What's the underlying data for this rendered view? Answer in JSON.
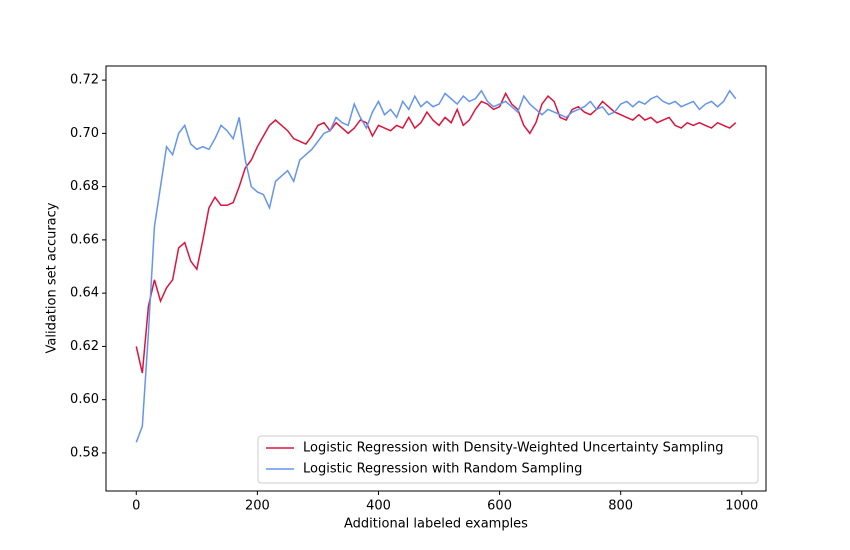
{
  "chart_data": {
    "type": "line",
    "xlabel": "Additional labeled examples",
    "ylabel": "Validation set accuracy",
    "x": [
      0,
      10,
      20,
      30,
      40,
      50,
      60,
      70,
      80,
      90,
      100,
      110,
      120,
      130,
      140,
      150,
      160,
      170,
      180,
      190,
      200,
      210,
      220,
      230,
      240,
      250,
      260,
      270,
      280,
      290,
      300,
      310,
      320,
      330,
      340,
      350,
      360,
      370,
      380,
      390,
      400,
      410,
      420,
      430,
      440,
      450,
      460,
      470,
      480,
      490,
      500,
      510,
      520,
      530,
      540,
      550,
      560,
      570,
      580,
      590,
      600,
      610,
      620,
      630,
      640,
      650,
      660,
      670,
      680,
      690,
      700,
      710,
      720,
      730,
      740,
      750,
      760,
      770,
      780,
      790,
      800,
      810,
      820,
      830,
      840,
      850,
      860,
      870,
      880,
      890,
      900,
      910,
      920,
      930,
      940,
      950,
      960,
      970,
      980,
      990
    ],
    "series": [
      {
        "name": "Logistic Regression with Density-Weighted Uncertainty Sampling",
        "color": "#dc143c",
        "values": [
          0.62,
          0.61,
          0.635,
          0.645,
          0.637,
          0.642,
          0.645,
          0.657,
          0.659,
          0.652,
          0.649,
          0.66,
          0.672,
          0.676,
          0.673,
          0.673,
          0.674,
          0.68,
          0.687,
          0.69,
          0.695,
          0.699,
          0.703,
          0.705,
          0.703,
          0.701,
          0.698,
          0.697,
          0.696,
          0.699,
          0.703,
          0.704,
          0.701,
          0.704,
          0.702,
          0.7,
          0.702,
          0.705,
          0.704,
          0.699,
          0.703,
          0.702,
          0.701,
          0.703,
          0.702,
          0.706,
          0.702,
          0.704,
          0.708,
          0.705,
          0.703,
          0.706,
          0.704,
          0.709,
          0.703,
          0.705,
          0.709,
          0.712,
          0.711,
          0.709,
          0.71,
          0.715,
          0.711,
          0.709,
          0.703,
          0.7,
          0.704,
          0.711,
          0.714,
          0.712,
          0.706,
          0.705,
          0.709,
          0.71,
          0.708,
          0.707,
          0.709,
          0.712,
          0.71,
          0.708,
          0.707,
          0.706,
          0.705,
          0.707,
          0.705,
          0.706,
          0.704,
          0.705,
          0.706,
          0.703,
          0.702,
          0.704,
          0.703,
          0.704,
          0.703,
          0.702,
          0.704,
          0.703,
          0.702,
          0.704
        ]
      },
      {
        "name": "Logistic Regression with Random Sampling",
        "color": "#6495ed",
        "values": [
          0.584,
          0.59,
          0.625,
          0.665,
          0.68,
          0.695,
          0.692,
          0.7,
          0.703,
          0.696,
          0.694,
          0.695,
          0.694,
          0.698,
          0.703,
          0.701,
          0.698,
          0.706,
          0.69,
          0.68,
          0.678,
          0.677,
          0.672,
          0.682,
          0.684,
          0.686,
          0.682,
          0.69,
          0.692,
          0.694,
          0.697,
          0.7,
          0.701,
          0.706,
          0.704,
          0.703,
          0.711,
          0.706,
          0.702,
          0.708,
          0.712,
          0.707,
          0.709,
          0.706,
          0.712,
          0.709,
          0.714,
          0.71,
          0.712,
          0.71,
          0.711,
          0.715,
          0.713,
          0.711,
          0.714,
          0.712,
          0.713,
          0.716,
          0.712,
          0.71,
          0.711,
          0.712,
          0.71,
          0.708,
          0.714,
          0.711,
          0.709,
          0.707,
          0.709,
          0.708,
          0.707,
          0.706,
          0.708,
          0.709,
          0.71,
          0.712,
          0.709,
          0.71,
          0.707,
          0.708,
          0.711,
          0.712,
          0.71,
          0.712,
          0.711,
          0.713,
          0.714,
          0.712,
          0.711,
          0.712,
          0.71,
          0.711,
          0.712,
          0.709,
          0.711,
          0.712,
          0.71,
          0.712,
          0.716,
          0.713
        ]
      }
    ],
    "xlim": [
      -50,
      1040
    ],
    "ylim": [
      0.5657,
      0.7253
    ],
    "xticks": [
      0,
      200,
      400,
      600,
      800,
      1000
    ],
    "yticks": [
      0.58,
      {
        "value": 0.6,
        "label": "0.60"
      },
      0.62,
      0.64,
      0.66,
      0.68,
      {
        "value": 0.7,
        "label": "0.70"
      },
      0.72
    ],
    "legend": "lower right"
  }
}
